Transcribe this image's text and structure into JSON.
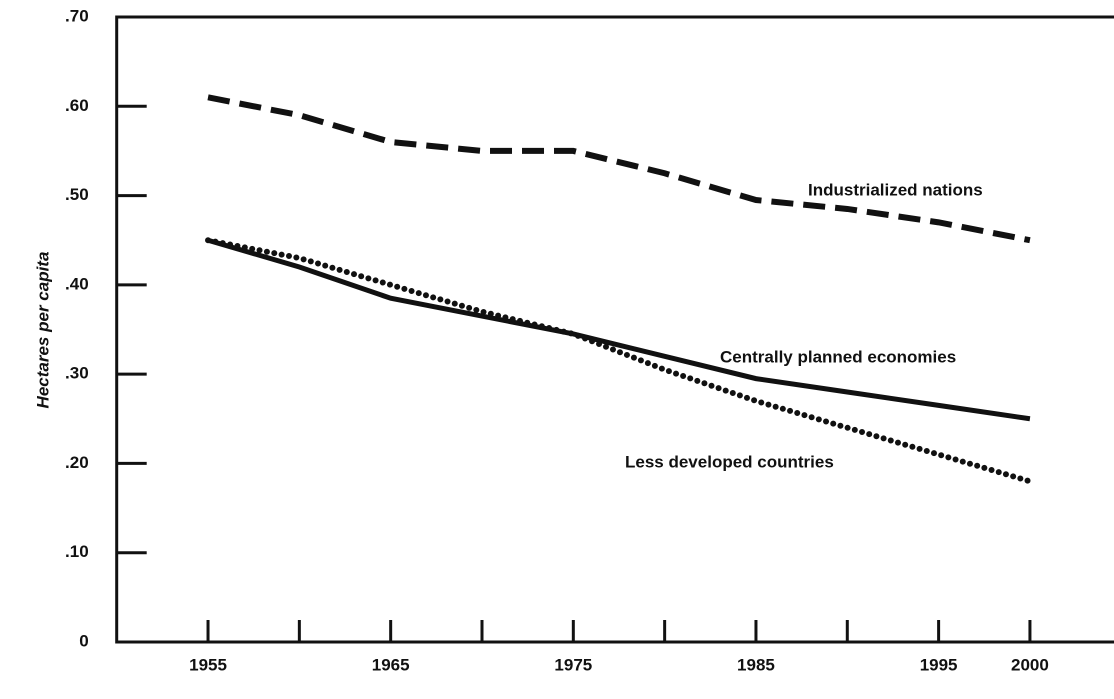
{
  "chart_data": {
    "type": "line",
    "y_label": "Hectares per capita",
    "x": [
      1955,
      1960,
      1965,
      1970,
      1975,
      1980,
      1985,
      1990,
      1995,
      2000
    ],
    "series": [
      {
        "name": "Industrialized nations",
        "color": "#111111",
        "style": "dashed",
        "values": [
          0.61,
          0.59,
          0.56,
          0.55,
          0.55,
          0.525,
          0.495,
          0.485,
          0.47,
          0.45
        ]
      },
      {
        "name": "Centrally planned economies",
        "color": "#111111",
        "style": "solid",
        "values": [
          0.45,
          0.42,
          0.385,
          0.365,
          0.345,
          0.32,
          0.295,
          0.28,
          0.265,
          0.25
        ]
      },
      {
        "name": "Less developed countries",
        "color": "#111111",
        "style": "dotted",
        "values": [
          0.45,
          0.43,
          0.4,
          0.37,
          0.345,
          0.305,
          0.27,
          0.24,
          0.21,
          0.18
        ]
      }
    ],
    "xlim": [
      1950,
      2004
    ],
    "xticks": [
      1955,
      1965,
      1975,
      1985,
      1995,
      2000
    ],
    "minor_xticks": [
      1960,
      1970,
      1980,
      1990
    ],
    "ylim": [
      0,
      0.7
    ],
    "yticks": [
      0,
      {
        "value": 0.1,
        "label": ".10"
      },
      {
        "value": 0.2,
        "label": ".20"
      },
      {
        "value": 0.3,
        "label": ".30"
      },
      {
        "value": 0.4,
        "label": ".40"
      },
      {
        "value": 0.5,
        "label": ".50"
      },
      {
        "value": 0.6,
        "label": ".60"
      },
      {
        "value": 0.7,
        "label": ".70"
      }
    ],
    "grid": false
  }
}
